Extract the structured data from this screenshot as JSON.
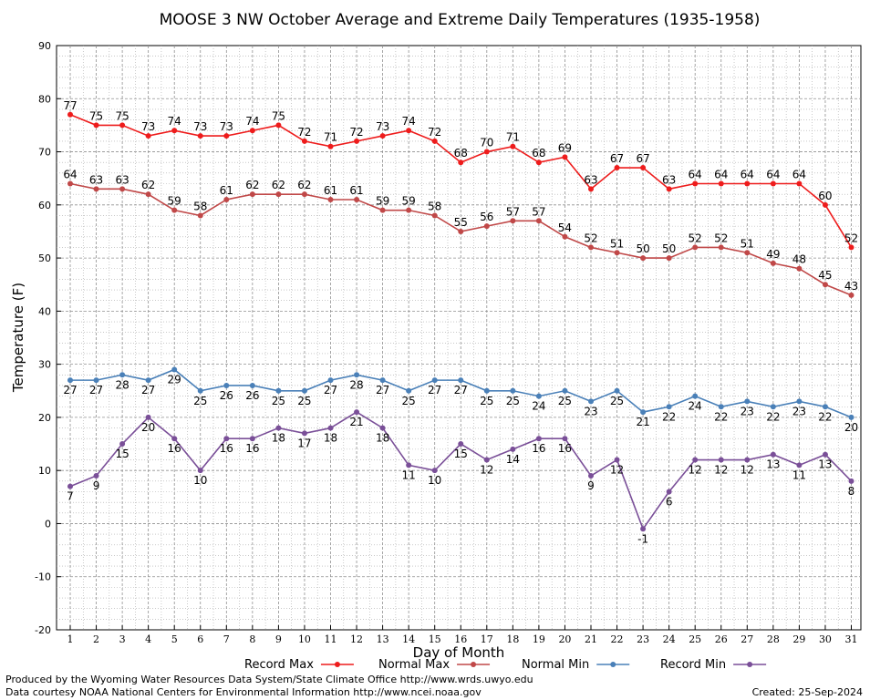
{
  "chart_data": {
    "type": "line",
    "title": "MOOSE 3 NW October Average and Extreme Daily Temperatures (1935-1958)",
    "xlabel": "Day of Month",
    "ylabel": "Temperature (F)",
    "ylim": [
      -20,
      90
    ],
    "yticks": [
      -20,
      -10,
      0,
      10,
      20,
      30,
      40,
      50,
      60,
      70,
      80,
      90
    ],
    "x": [
      1,
      2,
      3,
      4,
      5,
      6,
      7,
      8,
      9,
      10,
      11,
      12,
      13,
      14,
      15,
      16,
      17,
      18,
      19,
      20,
      21,
      22,
      23,
      24,
      25,
      26,
      27,
      28,
      29,
      30,
      31
    ],
    "grid": true,
    "legend": "bottom",
    "series": [
      {
        "name": "Record Max",
        "color": "#ee1c1c",
        "label_pos": "above",
        "values": [
          77,
          75,
          75,
          73,
          74,
          73,
          73,
          74,
          75,
          72,
          71,
          72,
          73,
          74,
          72,
          68,
          70,
          71,
          68,
          69,
          63,
          67,
          67,
          63,
          64,
          64,
          64,
          64,
          64,
          60,
          52
        ]
      },
      {
        "name": "Normal Max",
        "color": "#c04848",
        "label_pos": "above",
        "values": [
          64,
          63,
          63,
          62,
          59,
          58,
          61,
          62,
          62,
          62,
          61,
          61,
          59,
          59,
          58,
          55,
          56,
          57,
          57,
          54,
          52,
          51,
          50,
          50,
          52,
          52,
          51,
          49,
          48,
          45,
          43
        ]
      },
      {
        "name": "Normal Min",
        "color": "#4a80b8",
        "label_pos": "below",
        "values": [
          27,
          27,
          28,
          27,
          29,
          25,
          26,
          26,
          25,
          25,
          27,
          28,
          27,
          25,
          27,
          27,
          25,
          25,
          24,
          25,
          23,
          25,
          21,
          22,
          24,
          22,
          23,
          22,
          23,
          22,
          20
        ]
      },
      {
        "name": "Record Min",
        "color": "#7a4f98",
        "label_pos": "below",
        "values": [
          7,
          9,
          15,
          20,
          16,
          10,
          16,
          16,
          18,
          17,
          18,
          21,
          18,
          11,
          10,
          15,
          12,
          14,
          16,
          16,
          9,
          12,
          -1,
          6,
          12,
          12,
          12,
          13,
          11,
          13,
          8
        ]
      }
    ]
  },
  "footer": {
    "produced_by": "Produced by the Wyoming Water Resources Data System/State Climate Office http://www.wrds.uwyo.edu",
    "data_courtesy": "Data courtesy NOAA National Centers for Environmental Information http://www.ncei.noaa.gov",
    "created": "Created:  25-Sep-2024"
  }
}
